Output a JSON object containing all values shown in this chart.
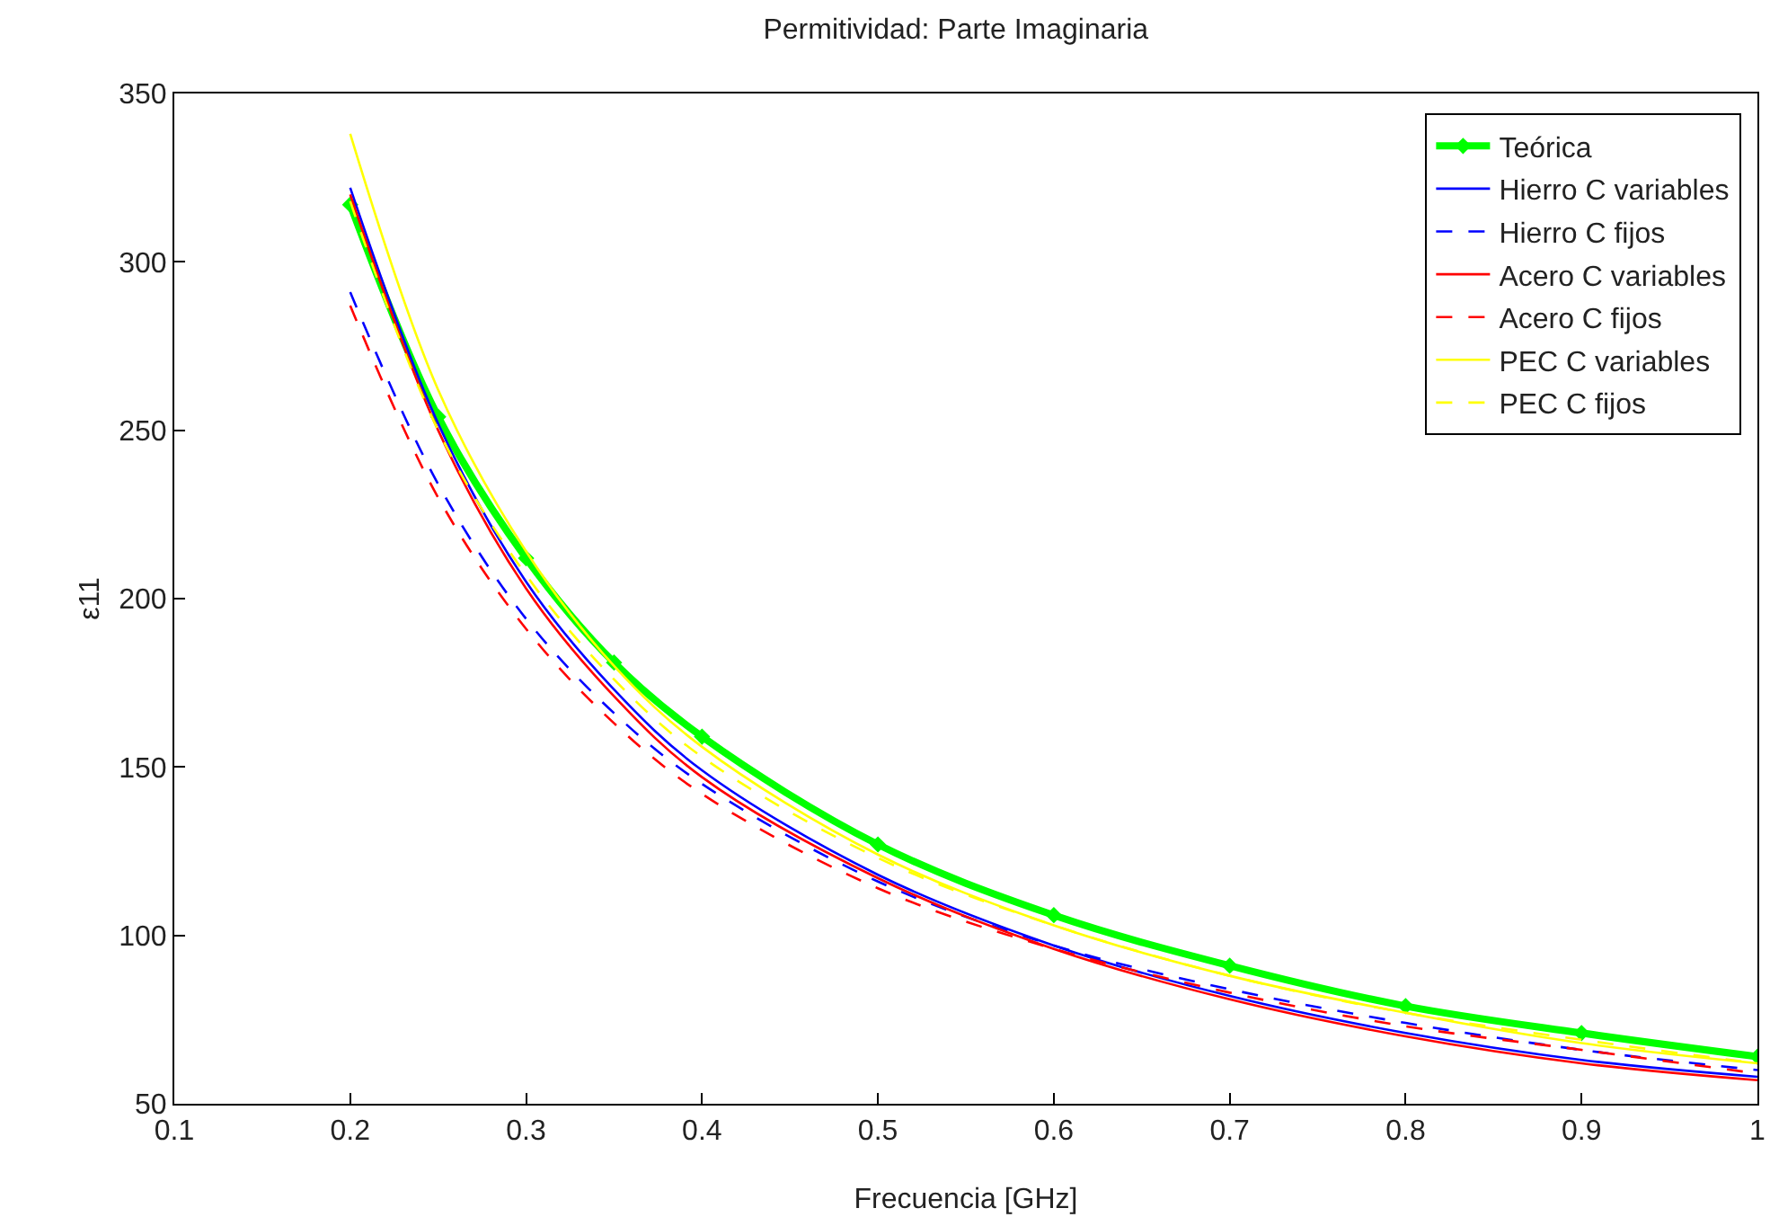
{
  "chart_data": {
    "type": "line",
    "title": "Permitividad: Parte Imaginaria",
    "xlabel": "Frecuencia [GHz]",
    "ylabel": "ε11",
    "x": [
      0.2,
      0.25,
      0.3,
      0.35,
      0.4,
      0.5,
      0.6,
      0.7,
      0.8,
      0.9,
      1.0
    ],
    "series": [
      {
        "name": "Teórica",
        "color": "#00ff00",
        "marker": "diamond",
        "line_style": "solid",
        "values": [
          317,
          254,
          212,
          181,
          159,
          127,
          106,
          91,
          79,
          71,
          64
        ]
      },
      {
        "name": "Hierro C variables",
        "color": "#0000ff",
        "line_style": "solid",
        "values": [
          322,
          252,
          205,
          173,
          149,
          118,
          97,
          82,
          71,
          63,
          58
        ]
      },
      {
        "name": "Hierro C fijos",
        "color": "#0000ff",
        "line_style": "dashed",
        "values": [
          291,
          234,
          194,
          166,
          145,
          116,
          97,
          84,
          74,
          66,
          60
        ]
      },
      {
        "name": "Acero C variables",
        "color": "#ff0000",
        "line_style": "solid",
        "values": [
          320,
          250,
          203,
          171,
          147,
          117,
          96,
          81,
          70,
          62,
          57
        ]
      },
      {
        "name": "Acero C fijos",
        "color": "#ff0000",
        "line_style": "dashed",
        "values": [
          287,
          230,
          191,
          163,
          142,
          114,
          96,
          83,
          73,
          66,
          59
        ]
      },
      {
        "name": "PEC C variables",
        "color": "#ffff00",
        "line_style": "solid",
        "values": [
          338,
          262,
          214,
          180,
          156,
          124,
          103,
          88,
          77,
          68,
          62
        ]
      },
      {
        "name": "PEC C fijos",
        "color": "#ffff00",
        "line_style": "dashed",
        "values": [
          318,
          250,
          207,
          176,
          153,
          123,
          103,
          88,
          77,
          69,
          62
        ]
      }
    ],
    "xlim": [
      0.1,
      1
    ],
    "xticks": [
      0.1,
      0.2,
      0.3,
      0.4,
      0.5,
      0.6,
      0.7,
      0.8,
      0.9,
      1
    ],
    "ylim": [
      50,
      350
    ],
    "yticks": [
      50,
      100,
      150,
      200,
      250,
      300,
      350
    ],
    "grid": false,
    "legend": "top right"
  }
}
